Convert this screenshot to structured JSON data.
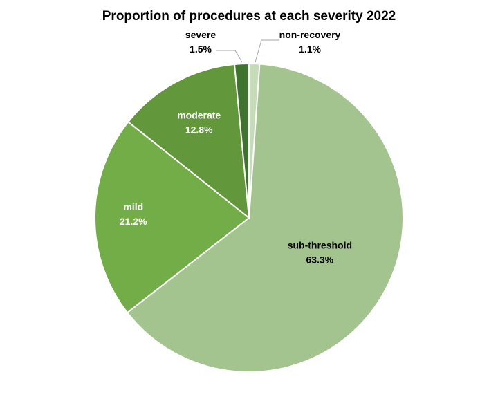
{
  "chart_data": {
    "type": "pie",
    "title": "Proportion of procedures at each severity 2022",
    "categories": [
      "non-recovery",
      "sub-threshold",
      "mild",
      "moderate",
      "severe"
    ],
    "values": [
      1.1,
      63.3,
      21.2,
      12.8,
      1.5
    ],
    "labels": [
      "1.1%",
      "63.3%",
      "21.2%",
      "12.8%",
      "1.5%"
    ],
    "colors": [
      "#c5dbb9",
      "#a3c48f",
      "#72ad47",
      "#62983b",
      "#3f7430"
    ],
    "label_colors": [
      "#000000",
      "#000000",
      "#ffffff",
      "#ffffff",
      "#000000"
    ],
    "start_angle_deg": 0,
    "direction": "clockwise",
    "legend": "none"
  }
}
